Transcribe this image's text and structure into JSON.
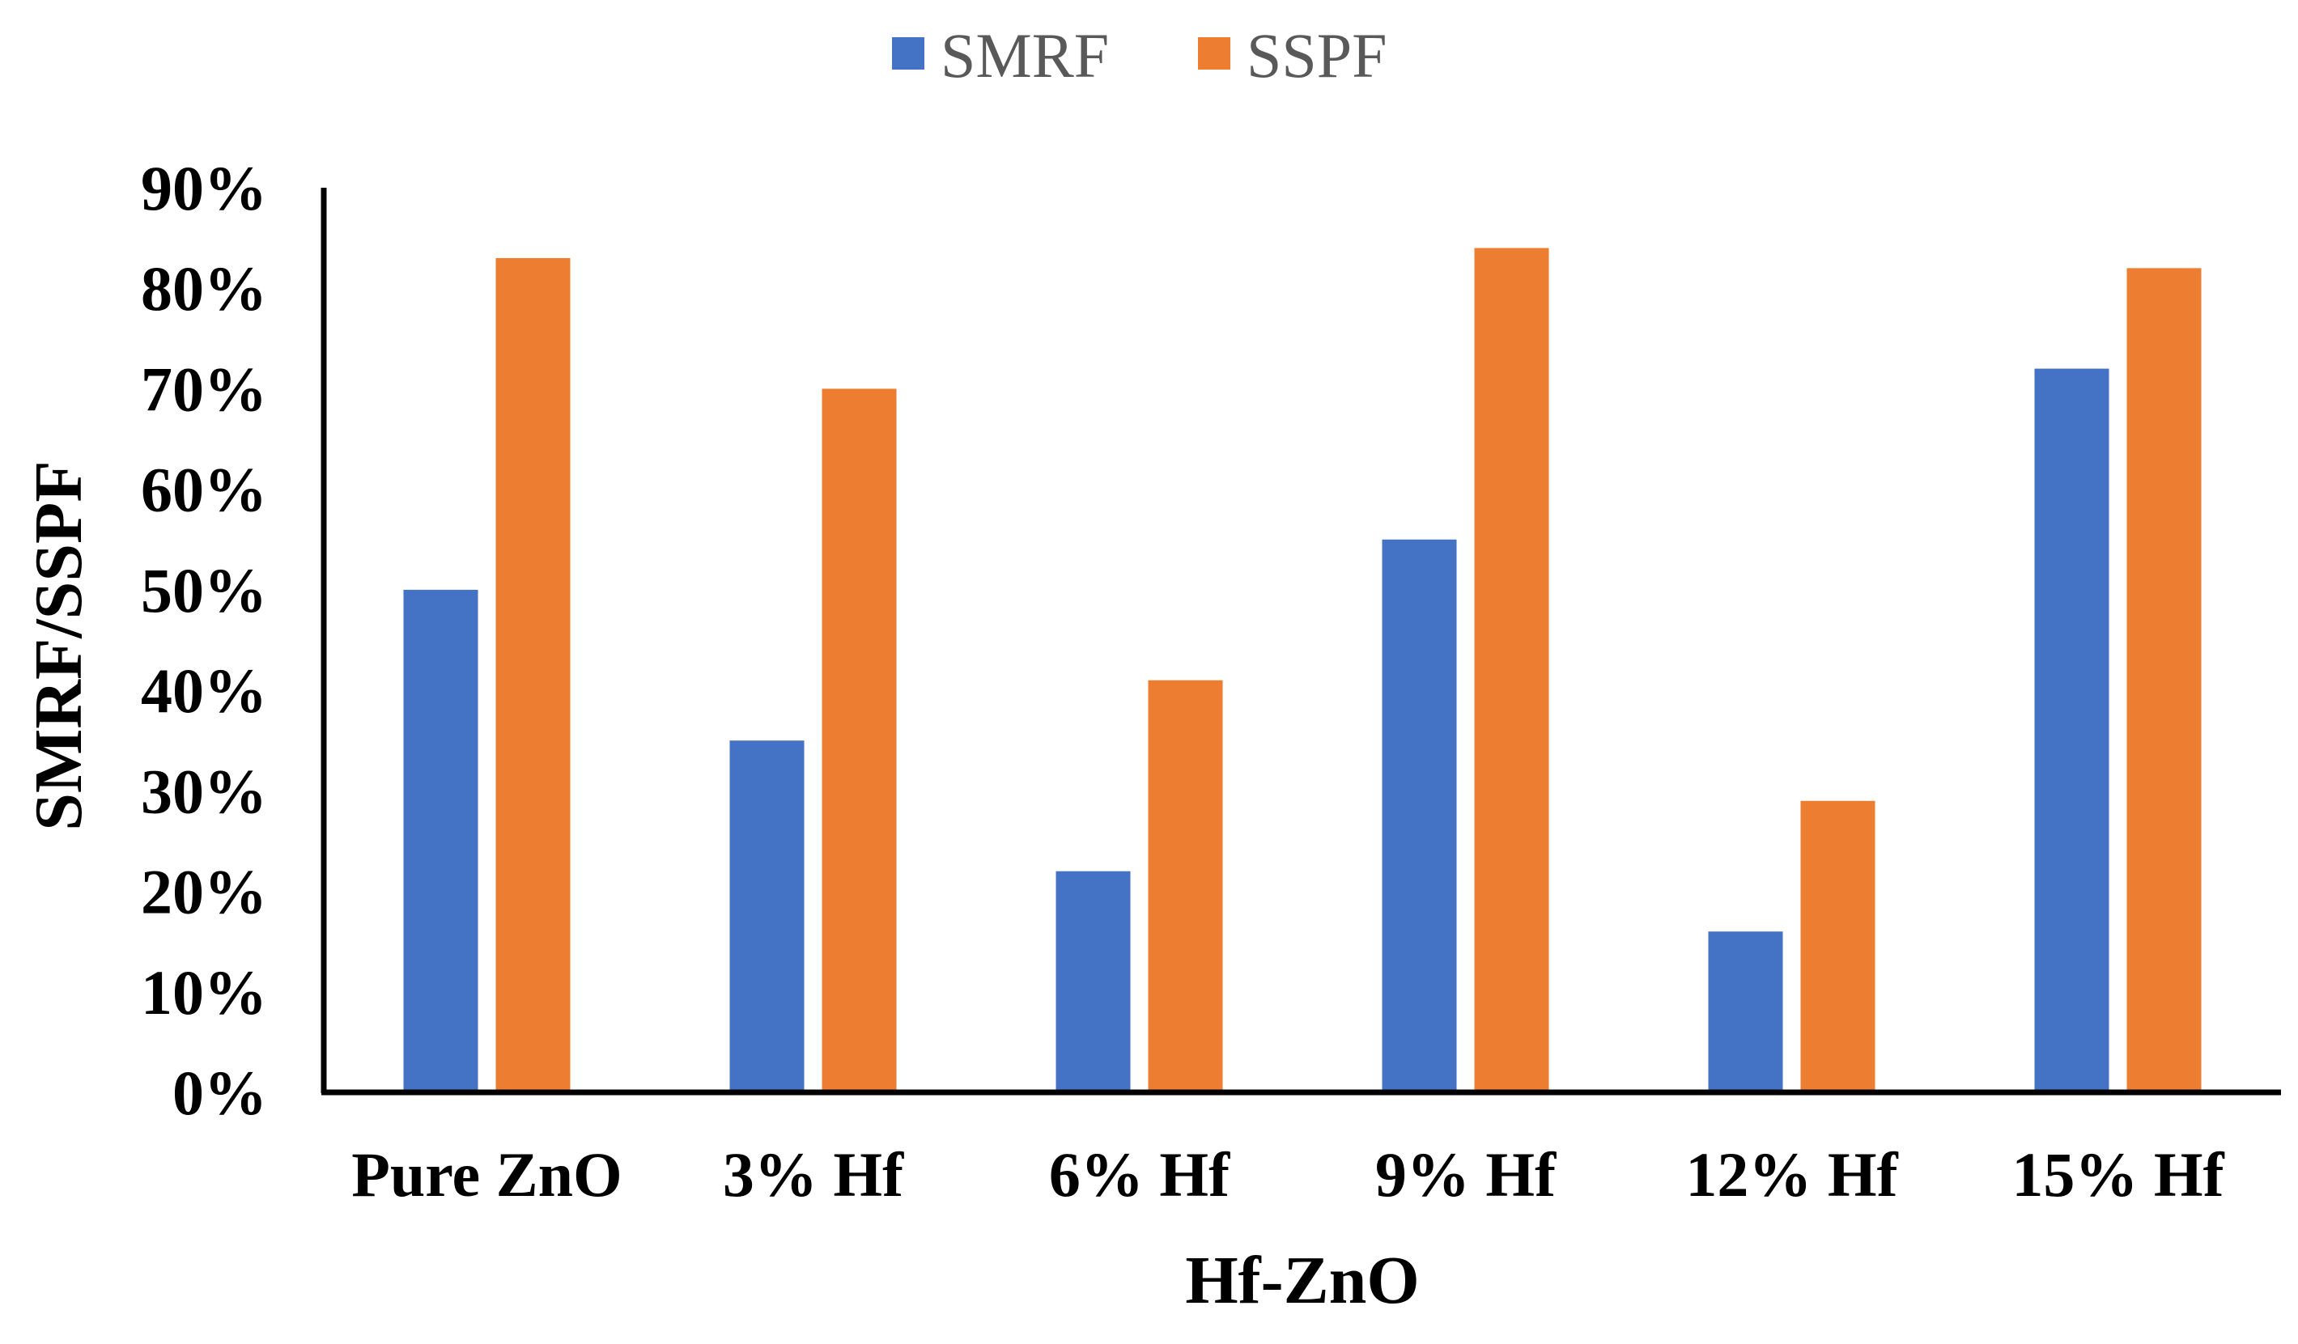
{
  "chart_data": {
    "type": "bar",
    "title": "",
    "xlabel": "Hf-ZnO",
    "ylabel": "SMRF/SSPF",
    "categories": [
      "Pure ZnO",
      "3% Hf",
      "6% Hf",
      "9% Hf",
      "12% Hf",
      "15% Hf"
    ],
    "series": [
      {
        "name": "SMRF",
        "color": "#4472C4",
        "values": [
          50,
          35,
          22,
          55,
          16,
          72
        ]
      },
      {
        "name": "SSPF",
        "color": "#ED7D31",
        "values": [
          83,
          70,
          41,
          84,
          29,
          82
        ]
      }
    ],
    "ylim": [
      0,
      90
    ],
    "yticks": [
      0,
      10,
      20,
      30,
      40,
      50,
      60,
      70,
      80,
      90
    ],
    "ytick_labels": [
      "0%",
      "10%",
      "20%",
      "30%",
      "40%",
      "50%",
      "60%",
      "70%",
      "80%",
      "90%"
    ],
    "legend": "top-center",
    "grid": false
  }
}
